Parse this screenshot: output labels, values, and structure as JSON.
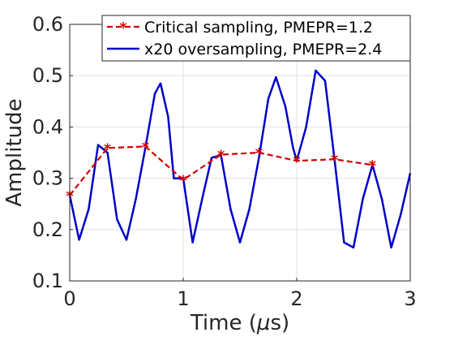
{
  "chart_data": {
    "type": "line",
    "xlabel_prefix": "Time (",
    "xlabel_unit": "μ",
    "xlabel_suffix": "s)",
    "ylabel": "Amplitude",
    "xlim": [
      0,
      3
    ],
    "ylim": [
      0.1,
      0.6
    ],
    "x_ticks": [
      0,
      1,
      2,
      3
    ],
    "y_ticks": [
      0.1,
      0.2,
      0.3,
      0.4,
      0.5,
      0.6
    ],
    "grid": true,
    "legend_position": "top-right",
    "series": [
      {
        "name": "Critical sampling, PMEPR=1.2",
        "color": "#d40000",
        "style": "dashed",
        "marker": "asterisk",
        "x": [
          0,
          0.333,
          0.667,
          1.0,
          1.333,
          1.667,
          2.0,
          2.333,
          2.667
        ],
        "y": [
          0.267,
          0.359,
          0.362,
          0.297,
          0.346,
          0.35,
          0.334,
          0.337,
          0.326
        ]
      },
      {
        "name": "x20 oversampling, PMEPR=2.4",
        "color": "#0000c8",
        "style": "solid",
        "marker": "none",
        "x": [
          0,
          0.083,
          0.167,
          0.25,
          0.333,
          0.417,
          0.5,
          0.583,
          0.667,
          0.75,
          0.8,
          0.867,
          0.917,
          1.0,
          1.083,
          1.167,
          1.25,
          1.333,
          1.417,
          1.5,
          1.583,
          1.667,
          1.75,
          1.817,
          1.9,
          1.967,
          2.0,
          2.083,
          2.167,
          2.25,
          2.333,
          2.417,
          2.5,
          2.583,
          2.667,
          2.75,
          2.833,
          2.917,
          3.0
        ],
        "y": [
          0.267,
          0.18,
          0.24,
          0.365,
          0.35,
          0.22,
          0.18,
          0.26,
          0.36,
          0.465,
          0.485,
          0.42,
          0.3,
          0.3,
          0.175,
          0.26,
          0.34,
          0.345,
          0.24,
          0.175,
          0.24,
          0.34,
          0.455,
          0.497,
          0.44,
          0.36,
          0.334,
          0.4,
          0.51,
          0.49,
          0.337,
          0.175,
          0.165,
          0.26,
          0.326,
          0.26,
          0.165,
          0.23,
          0.31
        ]
      }
    ]
  }
}
